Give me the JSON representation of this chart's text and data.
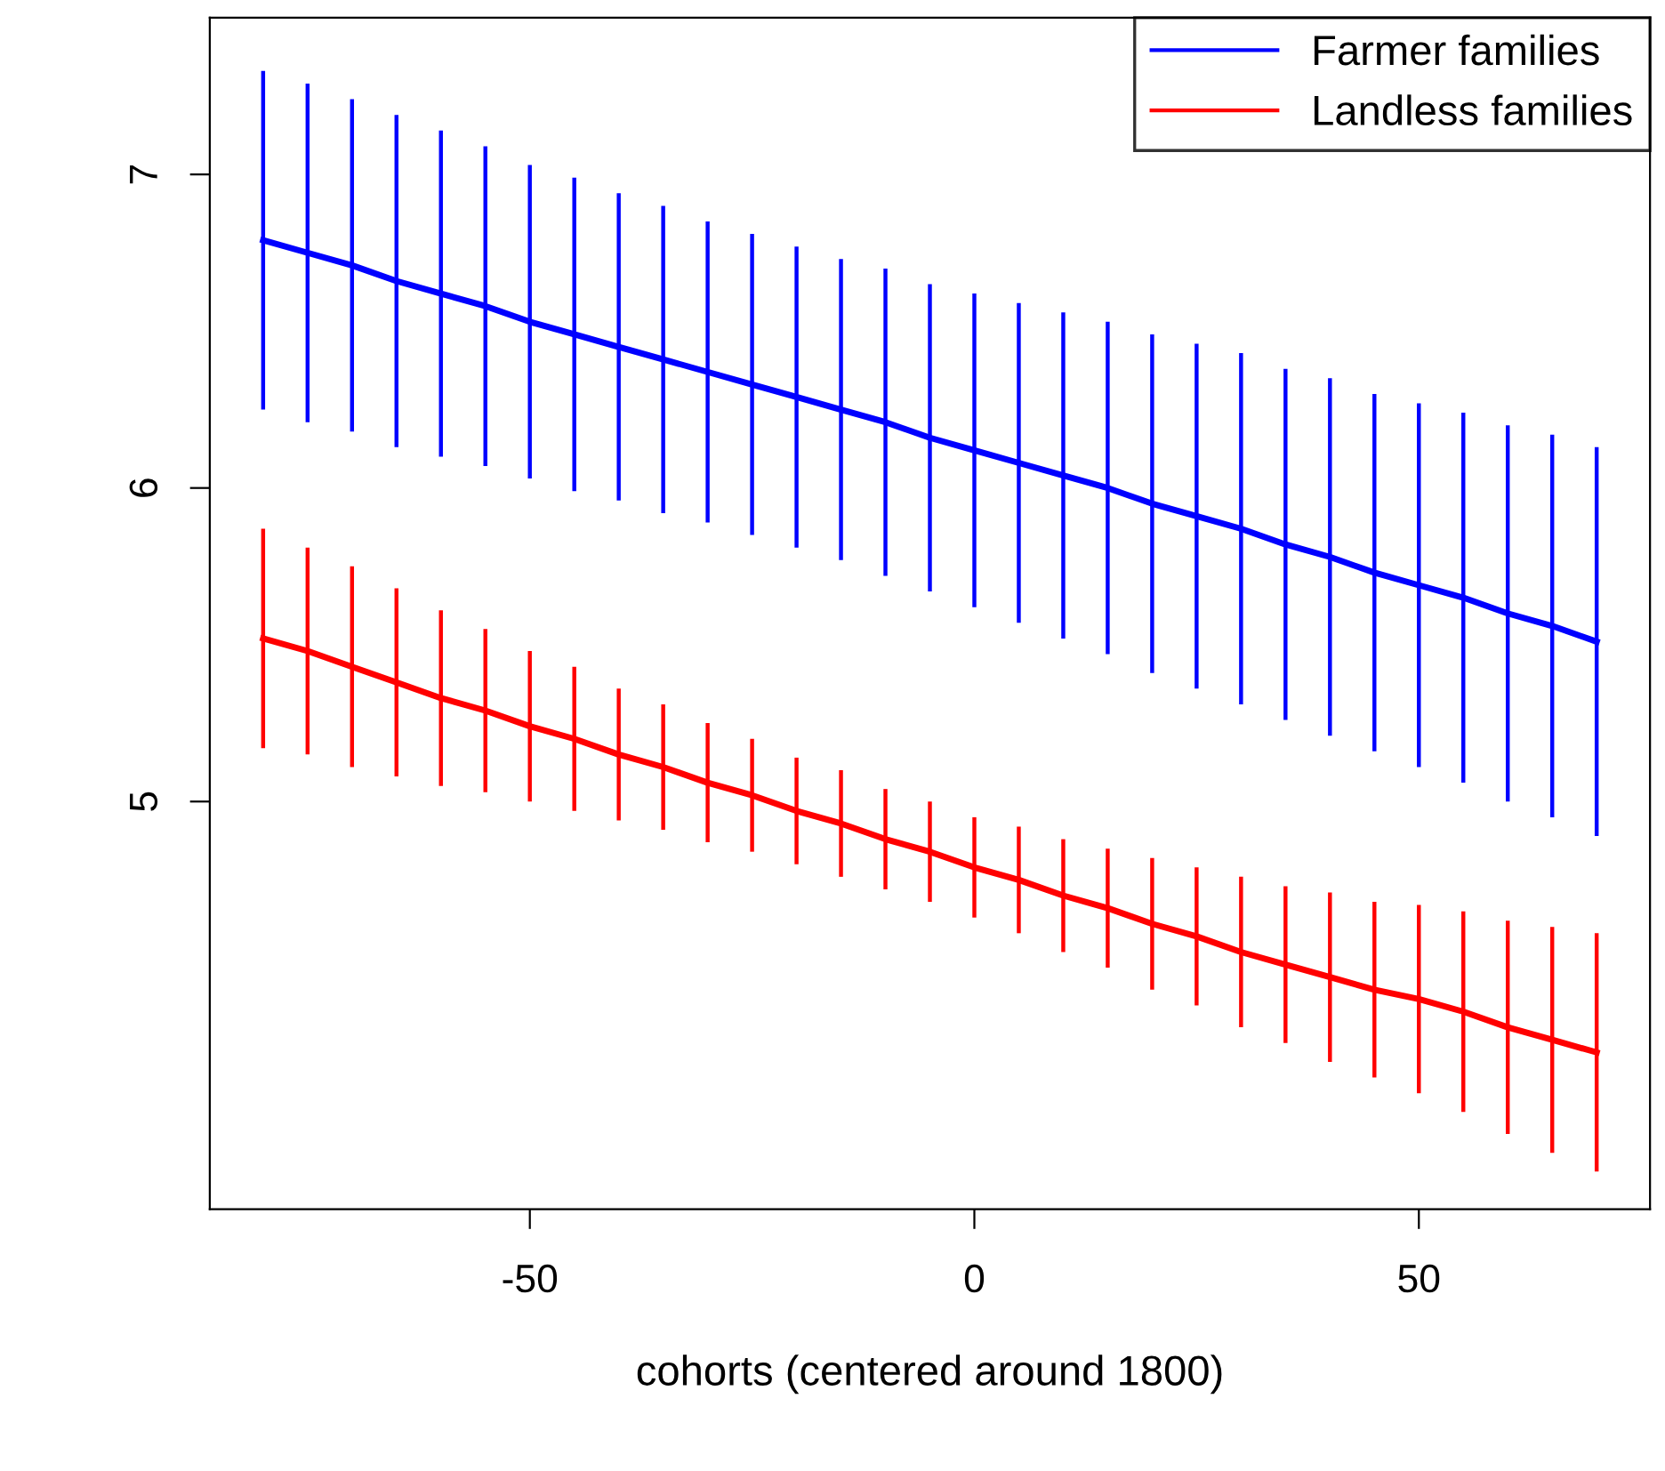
{
  "chart_data": {
    "type": "line",
    "xlabel": "cohorts (centered around 1800)",
    "x": [
      -80,
      -75,
      -70,
      -65,
      -60,
      -55,
      -50,
      -45,
      -40,
      -35,
      -30,
      -25,
      -20,
      -15,
      -10,
      -5,
      0,
      5,
      10,
      15,
      20,
      25,
      30,
      35,
      40,
      45,
      50,
      55,
      60,
      65,
      70
    ],
    "series": [
      {
        "name": "Farmer families",
        "color": "#0000ff",
        "values": [
          6.79,
          6.75,
          6.71,
          6.66,
          6.62,
          6.58,
          6.53,
          6.49,
          6.45,
          6.41,
          6.37,
          6.33,
          6.29,
          6.25,
          6.21,
          6.16,
          6.12,
          6.08,
          6.04,
          6.0,
          5.95,
          5.91,
          5.87,
          5.82,
          5.78,
          5.73,
          5.69,
          5.65,
          5.6,
          5.56,
          5.51
        ],
        "errors": [
          0.54,
          0.54,
          0.53,
          0.53,
          0.52,
          0.51,
          0.5,
          0.5,
          0.49,
          0.49,
          0.48,
          0.48,
          0.48,
          0.48,
          0.49,
          0.49,
          0.5,
          0.51,
          0.52,
          0.53,
          0.54,
          0.55,
          0.56,
          0.56,
          0.57,
          0.57,
          0.58,
          0.59,
          0.6,
          0.61,
          0.62
        ]
      },
      {
        "name": "Landless families",
        "color": "#ff0000",
        "values": [
          5.52,
          5.48,
          5.43,
          5.38,
          5.33,
          5.29,
          5.24,
          5.2,
          5.15,
          5.11,
          5.06,
          5.02,
          4.97,
          4.93,
          4.88,
          4.84,
          4.79,
          4.75,
          4.7,
          4.66,
          4.61,
          4.57,
          4.52,
          4.48,
          4.44,
          4.4,
          4.37,
          4.33,
          4.28,
          4.24,
          4.2
        ],
        "errors": [
          0.35,
          0.33,
          0.32,
          0.3,
          0.28,
          0.26,
          0.24,
          0.23,
          0.21,
          0.2,
          0.19,
          0.18,
          0.17,
          0.17,
          0.16,
          0.16,
          0.16,
          0.17,
          0.18,
          0.19,
          0.21,
          0.22,
          0.24,
          0.25,
          0.27,
          0.28,
          0.3,
          0.32,
          0.34,
          0.36,
          0.38
        ]
      }
    ],
    "xlim": [
      -86,
      76
    ],
    "ylim": [
      3.7,
      7.5
    ],
    "xticks": [
      -50,
      0,
      50
    ],
    "yticks": [
      5,
      6,
      7
    ],
    "legend": "top right",
    "grid": false,
    "marker": "none",
    "line_style": "solid"
  }
}
